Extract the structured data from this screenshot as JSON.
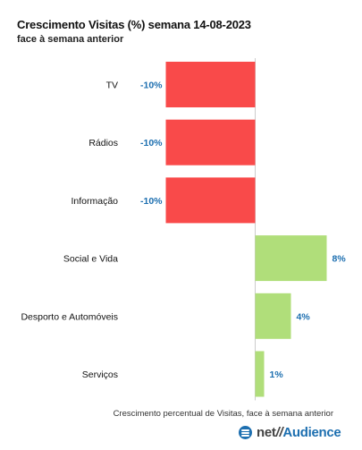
{
  "title": "Crescimento Visitas (%) semana 14-08-2023",
  "subtitle": "face à semana anterior",
  "footnote": "Crescimento percentual de Visitas, face à semana anterior",
  "logo": {
    "net": "net",
    "slash": "//",
    "brand": "Audience",
    "icon": "netaudience-logo-icon"
  },
  "colors": {
    "negative": "#f94a4a",
    "positive": "#b0de7a",
    "label": "#1d6fb0",
    "axis": "#cccccc"
  },
  "chart_data": {
    "type": "bar",
    "orientation": "horizontal",
    "categories": [
      "TV",
      "Rádios",
      "Informação",
      "Social e Vida",
      "Desporto e Automóveis",
      "Serviços"
    ],
    "values": [
      -10,
      -10,
      -10,
      8,
      4,
      1
    ],
    "value_labels": [
      "-10%",
      "-10%",
      "-10%",
      "8%",
      "4%",
      "1%"
    ],
    "xlim": [
      -11,
      11
    ],
    "title": "Crescimento Visitas (%) semana 14-08-2023",
    "subtitle": "face à semana anterior",
    "xlabel": "",
    "ylabel": "",
    "grid": false,
    "legend": "none"
  }
}
